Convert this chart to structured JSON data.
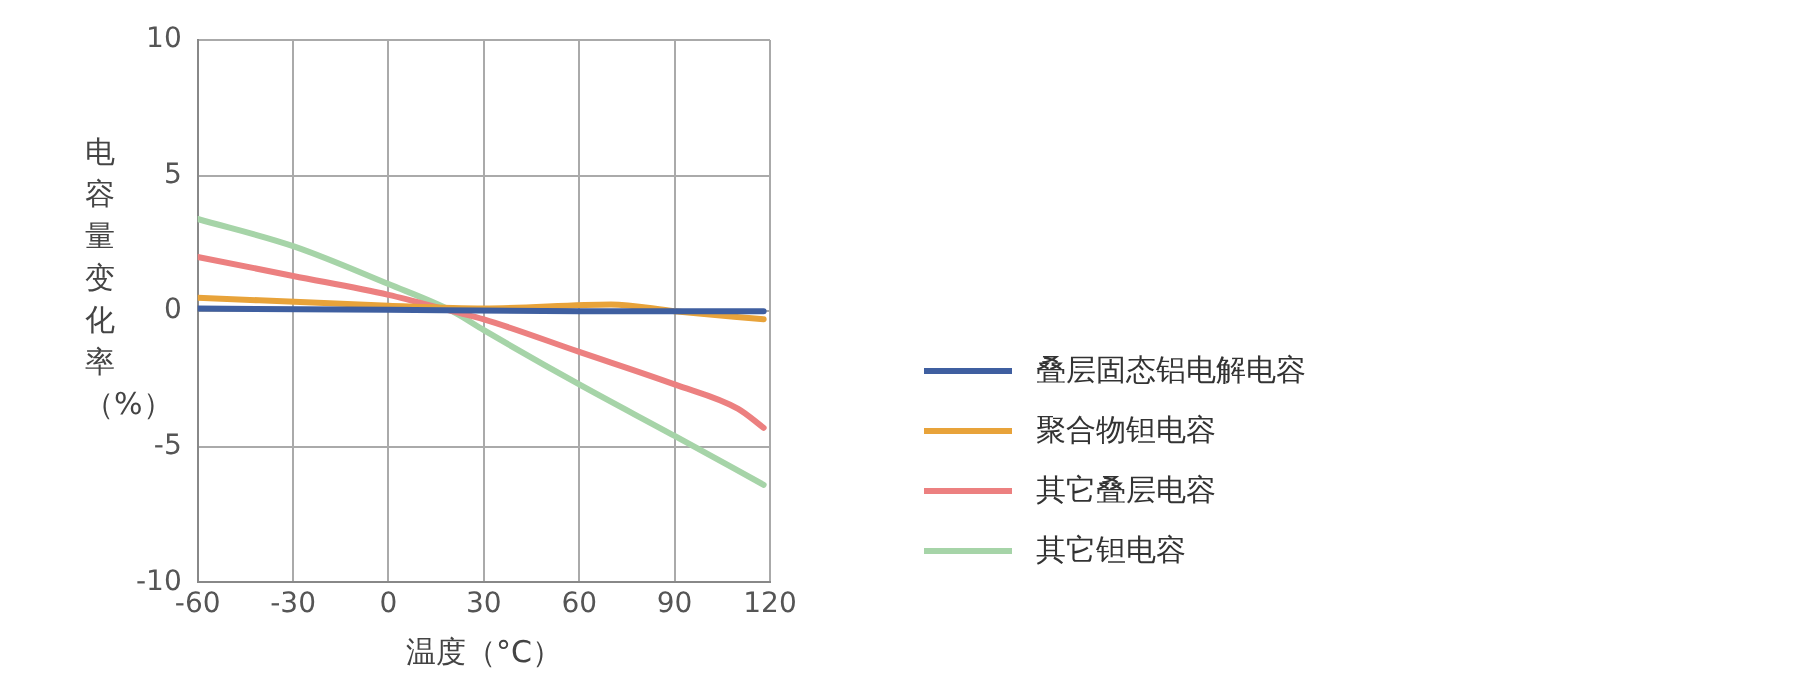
{
  "chart_data": {
    "type": "line",
    "xlabel": "温度（°C）",
    "ylabel": "电容量变化率（%）",
    "xlim": [
      -60,
      120
    ],
    "xticks": [
      -60,
      -30,
      0,
      30,
      60,
      90,
      120
    ],
    "ylim": [
      -10,
      10
    ],
    "yticks": [
      -10,
      -5,
      0,
      5,
      10
    ],
    "grid": true,
    "legend": "right",
    "marker": "none",
    "line_style": "solid",
    "series": [
      {
        "name": "叠层固态铝电解电容",
        "color": "#3f5fa0",
        "x": [
          -60,
          0,
          60,
          118
        ],
        "values": [
          0.1,
          0.05,
          0.0,
          0.0
        ]
      },
      {
        "name": "聚合物钽电容",
        "color": "#e8a33a",
        "x": [
          -60,
          0,
          30,
          70,
          90,
          118
        ],
        "values": [
          0.5,
          0.2,
          0.1,
          0.25,
          0.0,
          -0.3
        ]
      },
      {
        "name": "其它叠层电容",
        "color": "#ec8080",
        "x": [
          -60,
          -30,
          0,
          20,
          30,
          60,
          90,
          110,
          118
        ],
        "values": [
          2.0,
          1.3,
          0.6,
          0.0,
          -0.3,
          -1.5,
          -2.7,
          -3.6,
          -4.3
        ]
      },
      {
        "name": "其它钽电容",
        "color": "#a6d4a8",
        "x": [
          -60,
          -30,
          0,
          20,
          30,
          60,
          90,
          118
        ],
        "values": [
          3.4,
          2.4,
          1.0,
          0.0,
          -0.7,
          -2.7,
          -4.6,
          -6.4
        ]
      }
    ]
  }
}
